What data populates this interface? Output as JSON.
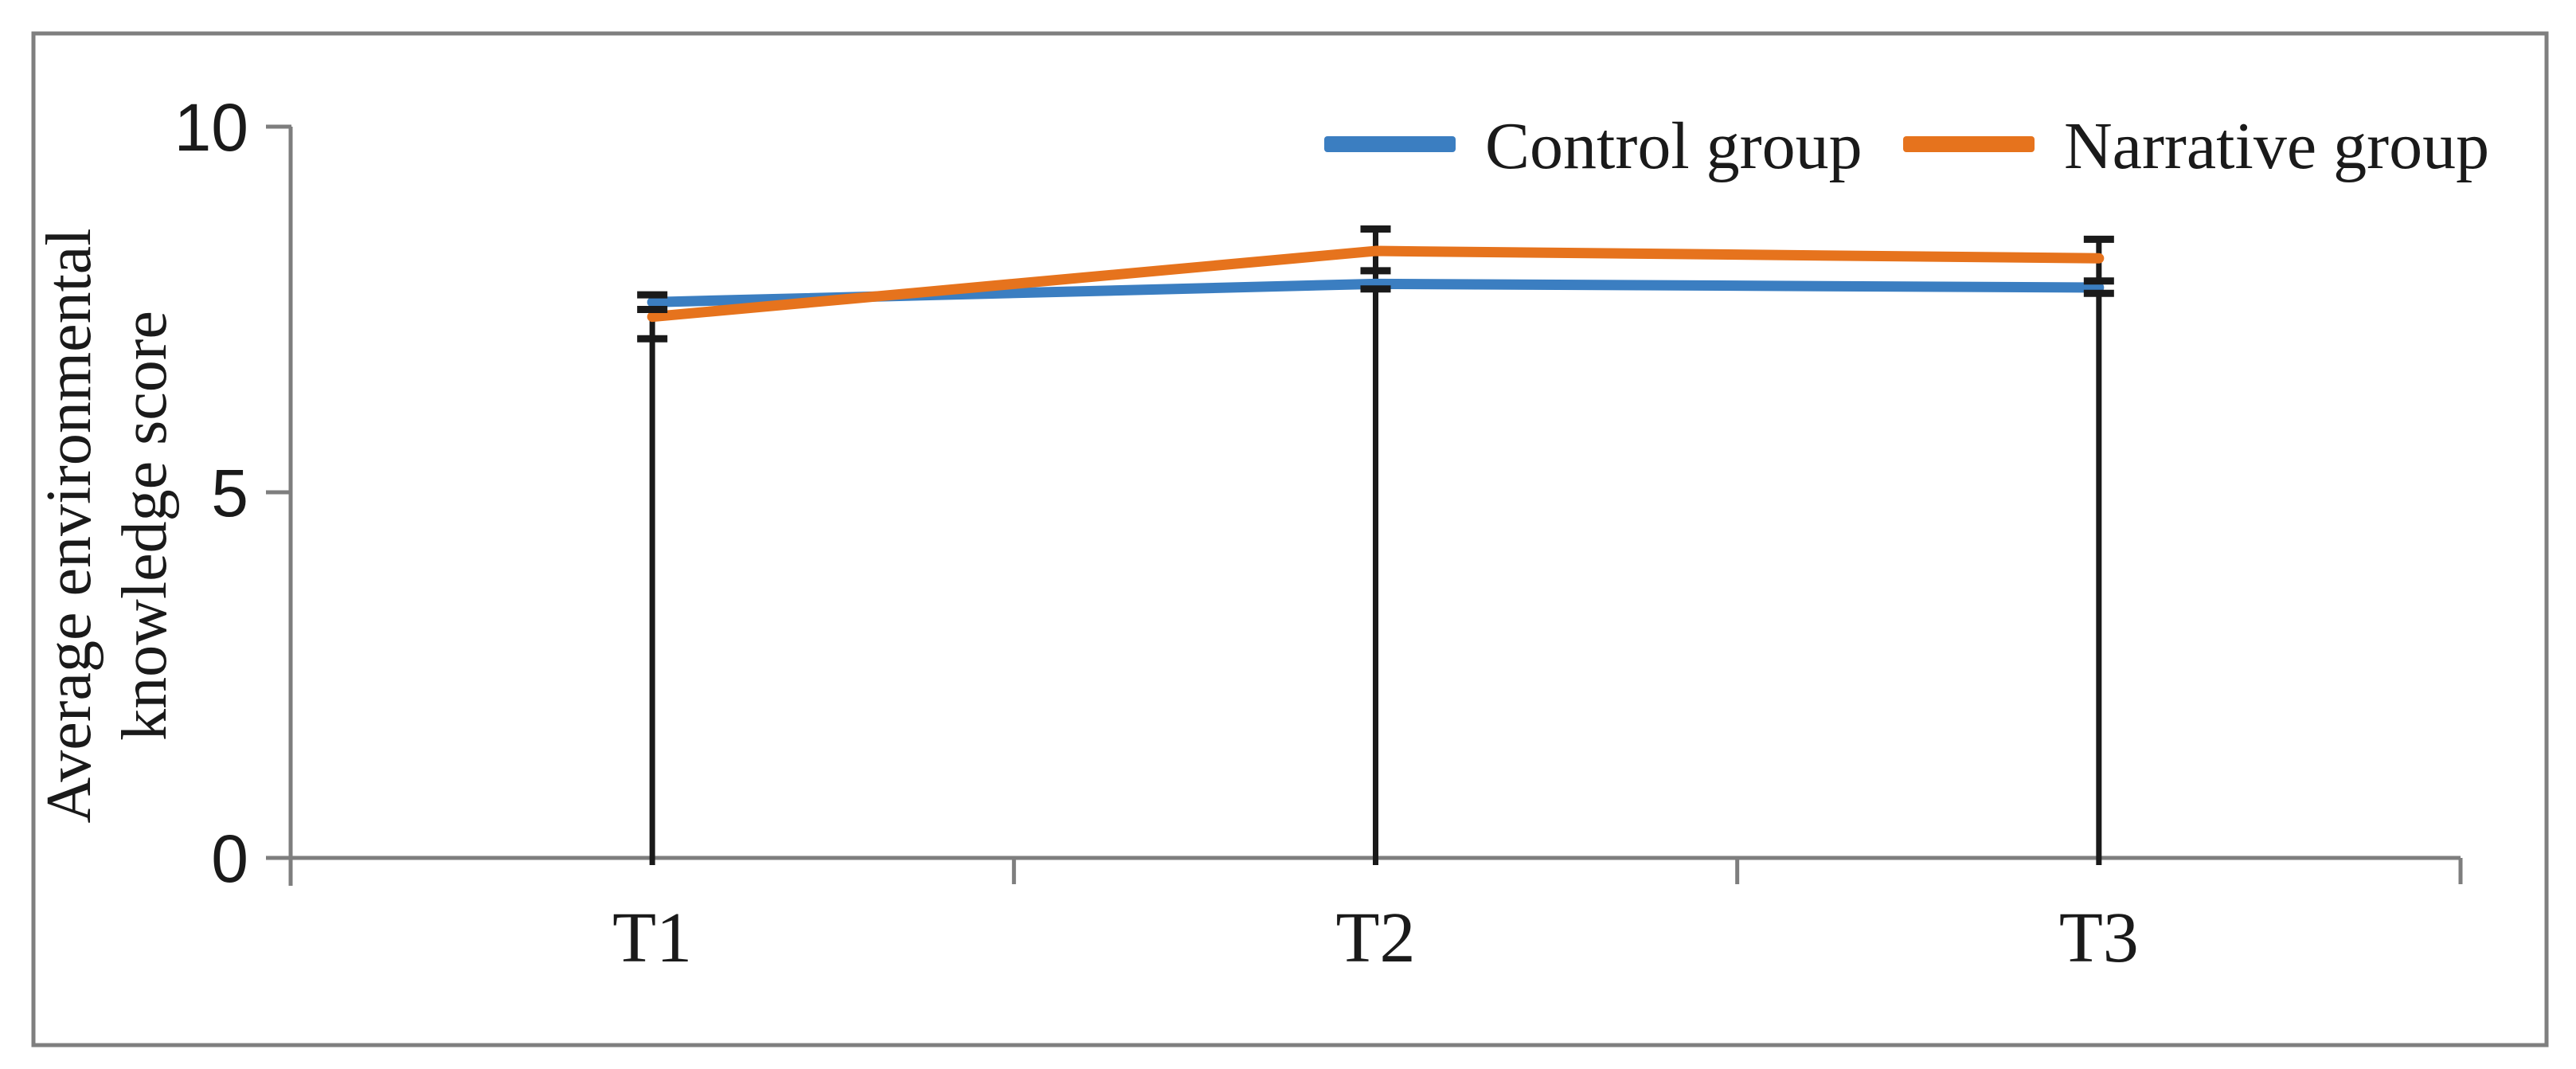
{
  "figure": {
    "background": "#ffffff",
    "border_color": "#7f7f7f",
    "text_color": "#1a1a1a"
  },
  "chart_data": {
    "type": "line",
    "title": "",
    "categories": [
      "T1",
      "T2",
      "T3"
    ],
    "series": [
      {
        "name": "Control group",
        "color": "#3b7ec1",
        "values": [
          7.6,
          7.85,
          7.8
        ]
      },
      {
        "name": "Narrative group",
        "color": "#e6731d",
        "values": [
          7.4,
          8.3,
          8.2
        ]
      }
    ],
    "error_marks": [
      {
        "category": "T1",
        "caps": [
          7.7,
          7.5,
          7.1
        ],
        "line_top": 7.7,
        "line_bottom": 0
      },
      {
        "category": "T2",
        "caps": [
          8.6,
          8.03,
          7.78
        ],
        "line_top": 8.6,
        "line_bottom": 0
      },
      {
        "category": "T3",
        "caps": [
          8.46,
          7.89,
          7.72
        ],
        "line_top": 8.46,
        "line_bottom": 0
      }
    ],
    "error_bar_color": "#1a1a1a",
    "ylabel_lines": [
      "Average environmental",
      "knowledge score"
    ],
    "xlabel": "",
    "yticks": [
      "0",
      "5",
      "10"
    ],
    "ytick_values": [
      0,
      5,
      10
    ],
    "ylim": [
      0,
      10
    ],
    "grid": false,
    "legend_position": "top-right",
    "axis_color": "#7e7e7e"
  }
}
